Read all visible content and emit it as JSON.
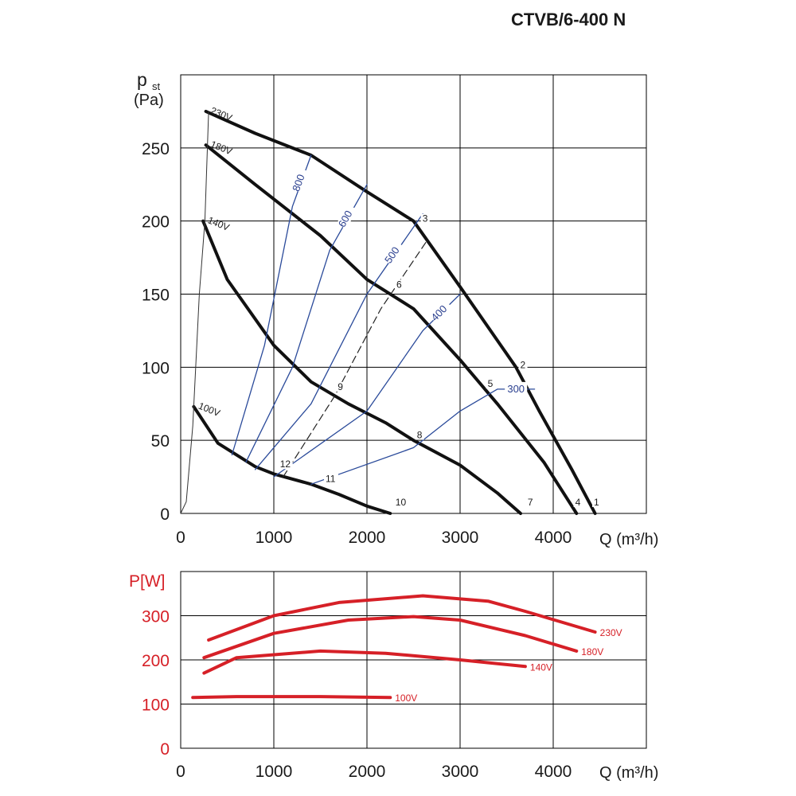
{
  "title": "CTVB/6-400 N",
  "colors": {
    "fan_curve": "#111111",
    "iso_line": "#2a4a9a",
    "power_curve": "#d62027",
    "grid": "#000000"
  },
  "chart_data": [
    {
      "type": "line",
      "ylabel_main": "p",
      "ylabel_sub": "st",
      "yunit": "(Pa)",
      "xlabel": "Q (m³/h)",
      "xlim": [
        0,
        5000
      ],
      "ylim": [
        0,
        300
      ],
      "xticks": [
        0,
        1000,
        2000,
        3000,
        4000
      ],
      "yticks": [
        0,
        50,
        100,
        150,
        200,
        250
      ],
      "grid": true,
      "series": [
        {
          "name": "230V",
          "kind": "fan",
          "points": [
            [
              270,
              275
            ],
            [
              800,
              260
            ],
            [
              1400,
              245
            ],
            [
              2000,
              220
            ],
            [
              2500,
              200
            ],
            [
              3000,
              155
            ],
            [
              3600,
              100
            ],
            [
              3850,
              70
            ],
            [
              4200,
              30
            ],
            [
              4450,
              0
            ]
          ]
        },
        {
          "name": "180V",
          "kind": "fan",
          "points": [
            [
              270,
              252
            ],
            [
              800,
              225
            ],
            [
              1500,
              190
            ],
            [
              2000,
              160
            ],
            [
              2500,
              140
            ],
            [
              3000,
              105
            ],
            [
              3400,
              75
            ],
            [
              3900,
              35
            ],
            [
              4250,
              0
            ]
          ]
        },
        {
          "name": "140V",
          "kind": "fan",
          "points": [
            [
              240,
              200
            ],
            [
              500,
              160
            ],
            [
              1000,
              115
            ],
            [
              1400,
              90
            ],
            [
              1800,
              75
            ],
            [
              2200,
              62
            ],
            [
              2500,
              50
            ],
            [
              3000,
              33
            ],
            [
              3400,
              14
            ],
            [
              3650,
              0
            ]
          ]
        },
        {
          "name": "100V",
          "kind": "fan",
          "points": [
            [
              140,
              73
            ],
            [
              400,
              48
            ],
            [
              800,
              32
            ],
            [
              1000,
              27
            ],
            [
              1400,
              20
            ],
            [
              1700,
              13
            ],
            [
              2000,
              5
            ],
            [
              2250,
              0
            ]
          ]
        },
        {
          "name": "800",
          "kind": "iso",
          "points": [
            [
              550,
              40
            ],
            [
              900,
              115
            ],
            [
              1200,
              210
            ],
            [
              1400,
              245
            ]
          ]
        },
        {
          "name": "600",
          "kind": "iso",
          "points": [
            [
              700,
              35
            ],
            [
              1200,
              100
            ],
            [
              1600,
              180
            ],
            [
              2000,
              225
            ]
          ]
        },
        {
          "name": "500",
          "kind": "iso",
          "points": [
            [
              800,
              30
            ],
            [
              1400,
              75
            ],
            [
              2000,
              150
            ],
            [
              2600,
              205
            ]
          ]
        },
        {
          "name": "400",
          "kind": "iso",
          "points": [
            [
              1000,
              25
            ],
            [
              2000,
              70
            ],
            [
              2600,
              125
            ],
            [
              3000,
              150
            ]
          ]
        },
        {
          "name": "300",
          "kind": "iso",
          "points": [
            [
              1400,
              20
            ],
            [
              2500,
              45
            ],
            [
              3000,
              70
            ],
            [
              3400,
              85
            ],
            [
              3800,
              85
            ]
          ]
        },
        {
          "name": "",
          "kind": "system",
          "points": [
            [
              1100,
              25
            ],
            [
              1650,
              80
            ],
            [
              2150,
              140
            ],
            [
              2650,
              187
            ]
          ]
        },
        {
          "name": "",
          "kind": "system-origin",
          "points": [
            [
              0,
              0
            ],
            [
              60,
              8
            ],
            [
              130,
              60
            ],
            [
              200,
              150
            ],
            [
              260,
              200
            ],
            [
              300,
              275
            ]
          ]
        }
      ],
      "point_labels": [
        {
          "id": "1",
          "x": 4470,
          "y": 6
        },
        {
          "id": "2",
          "x": 3680,
          "y": 100
        },
        {
          "id": "3",
          "x": 2630,
          "y": 200
        },
        {
          "id": "4",
          "x": 4270,
          "y": 6
        },
        {
          "id": "5",
          "x": 3330,
          "y": 87
        },
        {
          "id": "6",
          "x": 2350,
          "y": 155
        },
        {
          "id": "7",
          "x": 3760,
          "y": 6
        },
        {
          "id": "8",
          "x": 2570,
          "y": 52
        },
        {
          "id": "9",
          "x": 1720,
          "y": 85
        },
        {
          "id": "10",
          "x": 2340,
          "y": 6
        },
        {
          "id": "11",
          "x": 1590,
          "y": 22
        },
        {
          "id": "12",
          "x": 1100,
          "y": 32
        }
      ]
    },
    {
      "type": "line",
      "ylabel": "P[W]",
      "xlabel": "Q (m³/h)",
      "xlim": [
        0,
        5000
      ],
      "ylim": [
        0,
        400
      ],
      "xticks": [
        0,
        1000,
        2000,
        3000,
        4000
      ],
      "yticks": [
        0,
        100,
        200,
        300
      ],
      "grid": true,
      "series": [
        {
          "name": "230V",
          "points": [
            [
              300,
              245
            ],
            [
              1000,
              300
            ],
            [
              1700,
              330
            ],
            [
              2600,
              345
            ],
            [
              3300,
              333
            ],
            [
              3700,
              310
            ],
            [
              4450,
              263
            ]
          ]
        },
        {
          "name": "180V",
          "points": [
            [
              250,
              205
            ],
            [
              1000,
              260
            ],
            [
              1800,
              290
            ],
            [
              2500,
              298
            ],
            [
              3000,
              290
            ],
            [
              3700,
              255
            ],
            [
              4250,
              220
            ]
          ]
        },
        {
          "name": "140V",
          "points": [
            [
              250,
              170
            ],
            [
              600,
              205
            ],
            [
              1500,
              220
            ],
            [
              2200,
              215
            ],
            [
              3000,
              200
            ],
            [
              3700,
              185
            ]
          ]
        },
        {
          "name": "100V",
          "points": [
            [
              130,
              115
            ],
            [
              600,
              117
            ],
            [
              1500,
              117
            ],
            [
              2250,
              115
            ]
          ]
        }
      ]
    }
  ]
}
